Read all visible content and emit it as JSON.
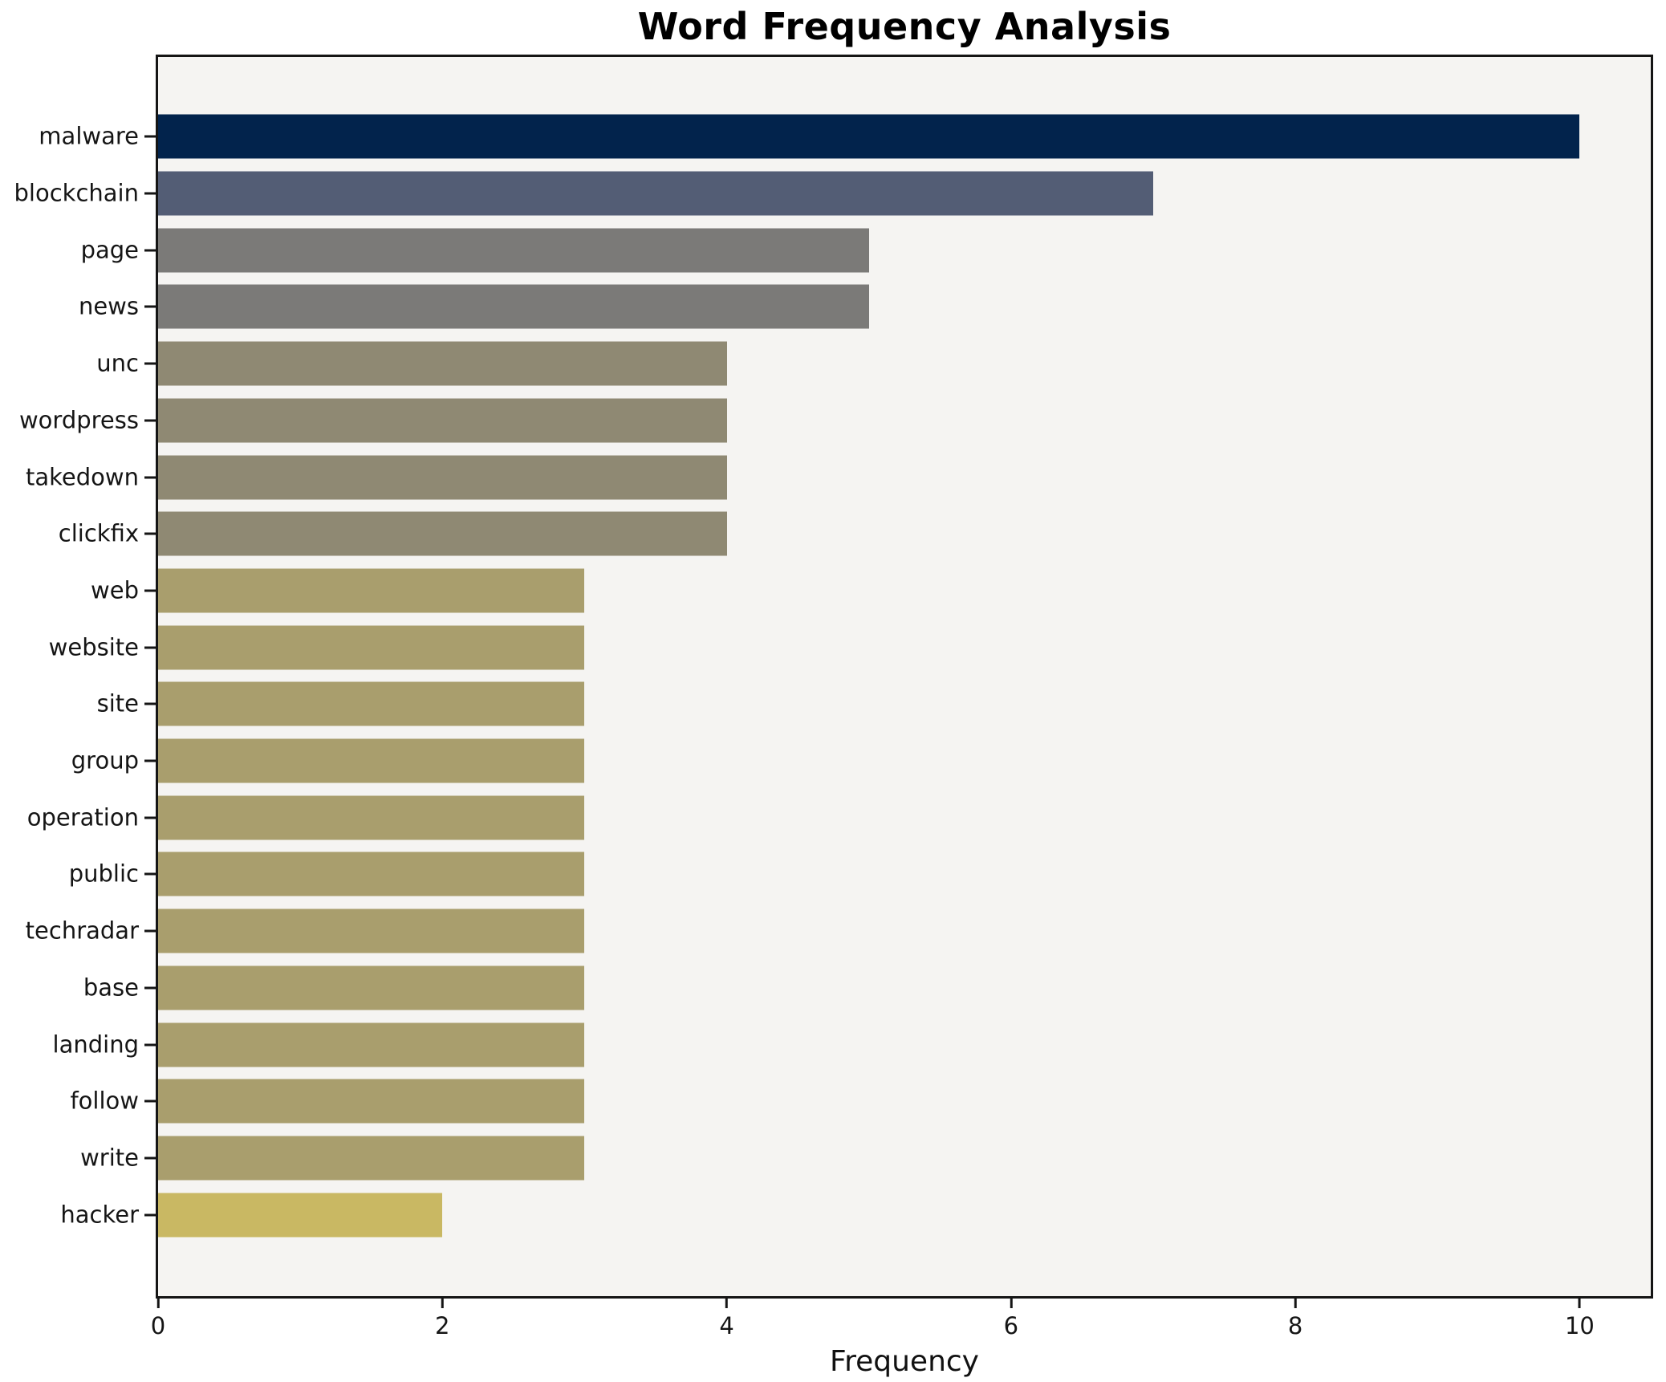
{
  "page": {
    "title": "Word Frequency Analysis"
  },
  "chart_data": {
    "type": "bar",
    "orientation": "horizontal",
    "title": "Word Frequency Analysis",
    "xlabel": "Frequency",
    "ylabel": "",
    "xlim": [
      0,
      10.5
    ],
    "xticks": [
      "0",
      "2",
      "4",
      "6",
      "8",
      "10"
    ],
    "xtick_values": [
      0,
      2,
      4,
      6,
      8,
      10
    ],
    "grid": false,
    "legend": "none",
    "plot_background": "#f5f4f2",
    "figure_background": "#ffffff",
    "axis_color": "#151515",
    "categories": [
      "malware",
      "blockchain",
      "page",
      "news",
      "unc",
      "wordpress",
      "takedown",
      "clickfix",
      "web",
      "website",
      "site",
      "group",
      "operation",
      "public",
      "techradar",
      "base",
      "landing",
      "follow",
      "write",
      "hacker"
    ],
    "values": [
      10,
      7,
      5,
      5,
      4,
      4,
      4,
      4,
      3,
      3,
      3,
      3,
      3,
      3,
      3,
      3,
      3,
      3,
      3,
      2
    ],
    "bar_colors": [
      "#02234c",
      "#535d75",
      "#7b7a78",
      "#7b7a78",
      "#8f8973",
      "#8f8973",
      "#8f8973",
      "#8f8973",
      "#a99e6d",
      "#a99e6d",
      "#a99e6d",
      "#a99e6d",
      "#a99e6d",
      "#a99e6d",
      "#a99e6d",
      "#a99e6d",
      "#a99e6d",
      "#a99e6d",
      "#a99e6d",
      "#c9b863"
    ]
  }
}
